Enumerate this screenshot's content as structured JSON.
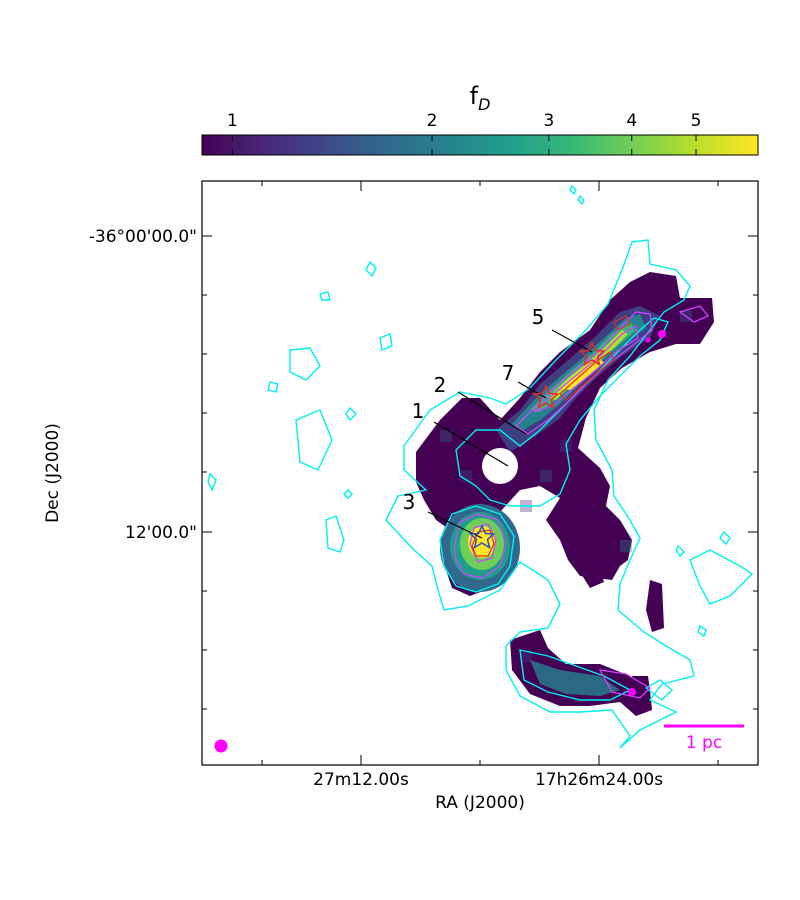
{
  "chart_data": {
    "type": "heatmap",
    "colorbar": {
      "label_main": "f",
      "label_sub": "D",
      "scale": "log",
      "range": [
        0.9,
        6.2
      ],
      "ticks": [
        1,
        2,
        3,
        4,
        5
      ],
      "colormap": "viridis",
      "colors": [
        "#440154",
        "#482878",
        "#3e4989",
        "#31688e",
        "#26828e",
        "#1f9e89",
        "#35b779",
        "#6ece58",
        "#b5de2b",
        "#fde725"
      ]
    },
    "xaxis": {
      "label": "RA (J2000)",
      "tick_labels": [
        "27m12.00s",
        "17h26m24.00s"
      ]
    },
    "yaxis": {
      "label": "Dec (J2000)",
      "tick_labels": [
        "-36°00'00.0\"",
        "12'00.0\""
      ]
    },
    "annotations": [
      {
        "label": "1",
        "marker": "none"
      },
      {
        "label": "2",
        "marker": "none"
      },
      {
        "label": "3",
        "marker": "star"
      },
      {
        "label": "5",
        "marker": "star"
      },
      {
        "label": "7",
        "marker": "star"
      }
    ],
    "scalebar": {
      "label": "1 pc",
      "color": "#ff00ff"
    },
    "beam": {
      "color": "#ff00ff"
    },
    "contour_colors": {
      "cyan": "#00f0f0",
      "magenta": "#cc44ff",
      "red": "#e03020"
    },
    "grid": false
  }
}
